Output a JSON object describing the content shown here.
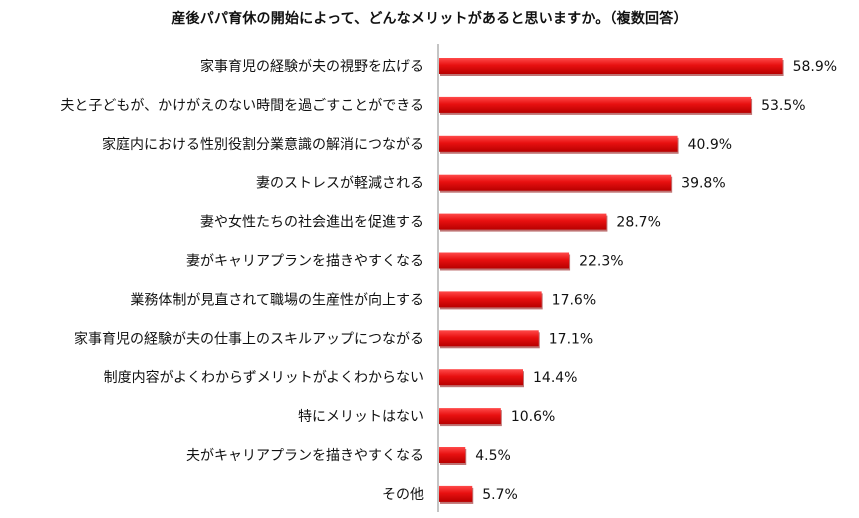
{
  "chart_data": {
    "type": "bar",
    "orientation": "horizontal",
    "title": "産後パパ育休の開始によって、どんなメリットがあると思いますか。（複数回答）",
    "categories": [
      "家事育児の経験が夫の視野を広げる",
      "夫と子どもが、かけがえのない時間を過ごすことができる",
      "家庭内における性別役割分業意識の解消につながる",
      "妻のストレスが軽減される",
      "妻や女性たちの社会進出を促進する",
      "妻がキャリアプランを描きやすくなる",
      "業務体制が見直されて職場の生産性が向上する",
      "家事育児の経験が夫の仕事上のスキルアップにつながる",
      "制度内容がよくわからずメリットがよくわからない",
      "特にメリットはない",
      "夫がキャリアプランを描きやすくなる",
      "その他"
    ],
    "values": [
      58.9,
      53.5,
      40.9,
      39.8,
      28.7,
      22.3,
      17.6,
      17.1,
      14.4,
      10.6,
      4.5,
      5.7
    ],
    "value_labels": [
      "58.9%",
      "53.5%",
      "40.9%",
      "39.8%",
      "28.7%",
      "22.3%",
      "17.6%",
      "17.1%",
      "14.4%",
      "10.6%",
      "4.5%",
      "5.7%"
    ],
    "xlim": [
      0,
      60
    ],
    "bar_color": "#e81010",
    "bar_shadow_color": "#8a0000",
    "axis_color": "#888888",
    "grid": false,
    "legend": "none"
  }
}
